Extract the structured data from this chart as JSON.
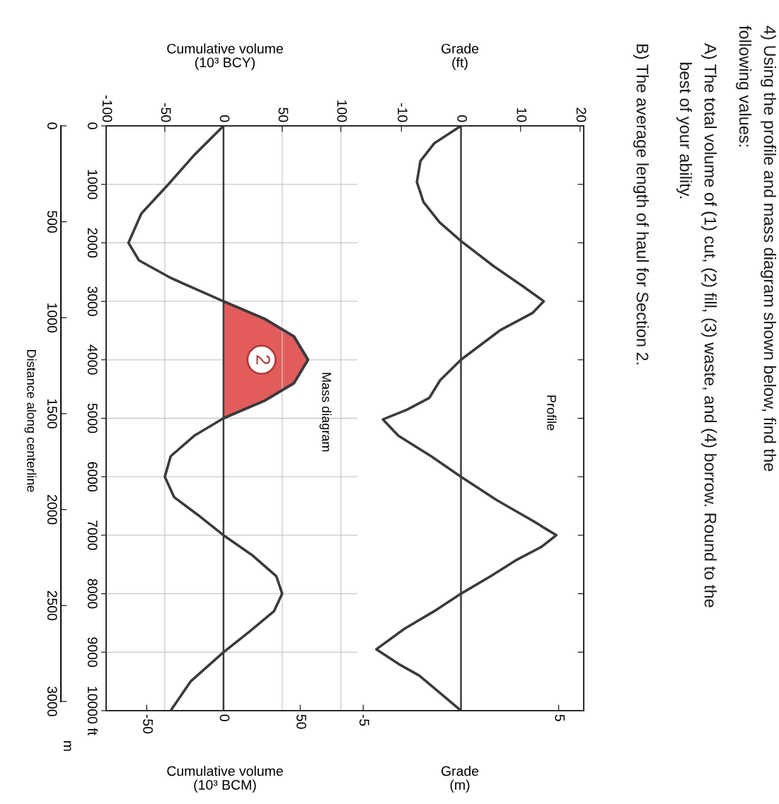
{
  "chart_data": [
    {
      "type": "line",
      "title": "Profile",
      "orientation": "horizontal",
      "xlabel": "Grade\n(m)",
      "x2label": "Grade\n(ft)",
      "xlim": [
        -5.3,
        6.28
      ],
      "xticks": [
        -5,
        5
      ],
      "x2lim": [
        -17.4,
        20.6
      ],
      "x2ticks": [
        -10,
        0,
        10,
        20
      ],
      "ylim": [
        10000,
        0
      ],
      "yticks": [
        0,
        1000,
        2000,
        3000,
        4000,
        5000,
        6000,
        7000,
        8000,
        9000,
        10000
      ],
      "tick_labels": "x",
      "grid": false,
      "x": [
        0,
        300,
        600,
        960,
        1300,
        1650,
        1970,
        2400,
        2750,
        3000,
        3200,
        3500,
        4000,
        4350,
        4650,
        4850,
        5020,
        5300,
        5650,
        6000,
        6400,
        6750,
        7000,
        7200,
        7430,
        7700,
        8000,
        8300,
        8600,
        8950,
        9200,
        9400,
        9700,
        10000
      ],
      "series": [
        {
          "values": [
            0,
            -4.5,
            -6.8,
            -7.4,
            -6.3,
            -3.6,
            0,
            5.5,
            10.5,
            13.9,
            12,
            6.5,
            0,
            -3.5,
            -5.3,
            -9,
            -13.1,
            -10.5,
            -5,
            0,
            6,
            12,
            16,
            13.5,
            9.2,
            5,
            0,
            -4.5,
            -9.5,
            -14.2,
            -10.5,
            -7,
            -3.5,
            0
          ],
          "color": "#3b3b3b",
          "axis": "x2"
        }
      ],
      "ref_lines": [
        {
          "axis": "x2",
          "value": 0,
          "color": "#3b3b3b"
        }
      ]
    },
    {
      "type": "line",
      "title": "Mass diagram",
      "orientation": "horizontal",
      "xlabel": "Cumulative volume\n(10³ BCM)",
      "x2label": "Cumulative volume\n(10³ BCY)",
      "xlim": [
        -76.5,
        87.2
      ],
      "xticks": [
        -50,
        0,
        50
      ],
      "x2lim": [
        -100,
        114
      ],
      "x2ticks": [
        -100,
        -50,
        0,
        50,
        100
      ],
      "ylim": [
        10000,
        0
      ],
      "yticks": [
        0,
        1000,
        2000,
        3000,
        4000,
        5000,
        6000,
        7000,
        8000,
        9000,
        {
          "value": 10000,
          "label": "10000 ft"
        }
      ],
      "y2label": "m",
      "y2lim": [
        3048,
        0
      ],
      "y2ticks": [
        0,
        500,
        1000,
        1500,
        2000,
        2500,
        3000
      ],
      "grid": true,
      "x": [
        0,
        500,
        1000,
        1500,
        2000,
        2300,
        2600,
        3000,
        3300,
        3600,
        4000,
        4400,
        4700,
        5000,
        5300,
        5650,
        6000,
        6350,
        6650,
        7000,
        7350,
        7700,
        8000,
        8300,
        8650,
        9000,
        9500,
        10000
      ],
      "series": [
        {
          "values": [
            0,
            -25,
            -47,
            -70,
            -81,
            -72,
            -45,
            0,
            35,
            60,
            72,
            60,
            35,
            0,
            -25,
            -45,
            -50,
            -42,
            -22,
            0,
            25,
            45,
            50,
            43,
            22,
            0,
            -28,
            -45
          ],
          "color": "#3b3b3b",
          "axis": "x2"
        },
        {
          "type": "area",
          "x": [
            3000,
            3300,
            3600,
            4000,
            4400,
            4700,
            5000
          ],
          "values": [
            0,
            35,
            60,
            72,
            60,
            35,
            0
          ],
          "color": "#e25c5c",
          "axis": "x2"
        }
      ],
      "ref_lines": [
        {
          "axis": "x2",
          "value": 0,
          "color": "#3b3b3b"
        }
      ],
      "annotations": [
        "2",
        "Distance along centerline"
      ]
    },
    {
      "type": "other",
      "title": "4) Using the profile and mass diagram shown below, find the\nfollowing values:",
      "annotations": [
        "A) The total volume of (1) cut, (2) fill, (3) waste, and (4) borrow. Round to the\n    best of your ability.",
        "B) The average length of haul for Section 2."
      ]
    }
  ]
}
